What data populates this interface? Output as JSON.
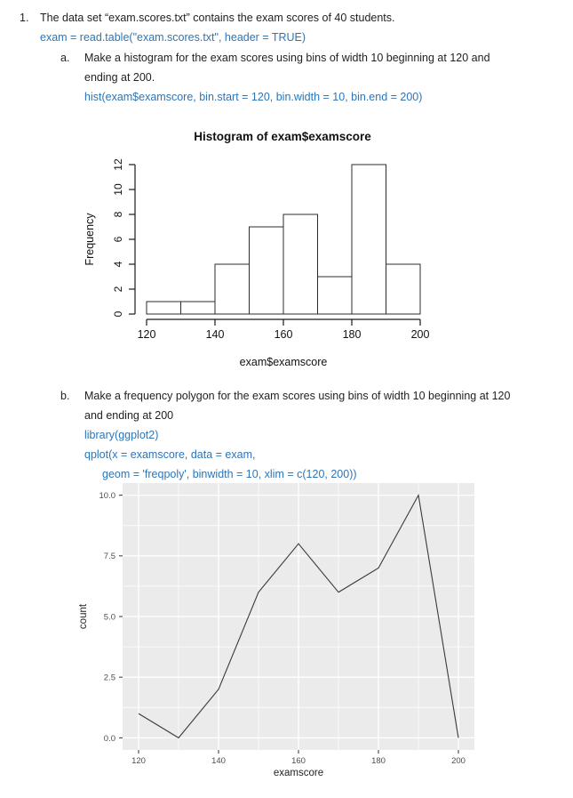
{
  "page": {
    "background": "#ffffff",
    "text_color": "#1f1f1f",
    "code_color": "#2E75B6"
  },
  "problem": {
    "number": "1.",
    "intro": "The data set “exam.scores.txt” contains the exam scores of 40 students.",
    "code_read": "exam = read.table(\"exam.scores.txt\", header = TRUE)",
    "items": [
      {
        "letter": "a.",
        "text_line1": "Make a histogram for the exam scores using bins of width 10 beginning at 120 and",
        "text_line2": "ending at 200.",
        "code1": "hist(exam$examscore, bin.start = 120, bin.width = 10, bin.end = 200)"
      },
      {
        "letter": "b.",
        "text_line1": "Make a frequency polygon for the exam scores using bins of width 10 beginning at 120",
        "text_line2": "and ending at 200",
        "code1": "library(ggplot2)",
        "code2": "qplot(x = examscore, data = exam,",
        "code3": "geom = 'freqpoly', binwidth = 10, xlim = c(120, 200))"
      }
    ]
  },
  "chart_data": [
    {
      "type": "bar",
      "style": "base-r-histogram",
      "title": "Histogram of exam$examscore",
      "xlabel": "exam$examscore",
      "ylabel": "Frequency",
      "bin_edges": [
        120,
        130,
        140,
        150,
        160,
        170,
        180,
        190,
        200
      ],
      "values": [
        1,
        1,
        4,
        7,
        8,
        3,
        12,
        4
      ],
      "x_ticks": [
        120,
        140,
        160,
        180,
        200
      ],
      "y_ticks": [
        0,
        2,
        4,
        6,
        8,
        10,
        12
      ],
      "xlim": [
        120,
        200
      ],
      "ylim": [
        0,
        12
      ],
      "grid": false,
      "bar_fill": "#ffffff",
      "bar_stroke": "#2b2b2b",
      "axis_color": "#1a1a1a"
    },
    {
      "type": "line",
      "style": "ggplot-freqpoly",
      "title": "",
      "xlabel": "examscore",
      "ylabel": "count",
      "x": [
        120,
        130,
        140,
        150,
        160,
        170,
        180,
        190,
        200
      ],
      "values": [
        1,
        0,
        2,
        6,
        8,
        6,
        7,
        10,
        0
      ],
      "x_ticks": [
        120,
        140,
        160,
        180,
        200
      ],
      "y_ticks": [
        0,
        2.5,
        5,
        7.5,
        10
      ],
      "y_tick_labels": [
        "0.0",
        "2.5",
        "5.0",
        "7.5",
        "10.0"
      ],
      "x_minor": [
        130,
        150,
        170,
        190
      ],
      "y_minor": [
        1.25,
        3.75,
        6.25,
        8.75
      ],
      "xlim": [
        116,
        204
      ],
      "ylim": [
        -0.5,
        10.5
      ],
      "grid": true,
      "legend": "none",
      "panel_bg": "#EBEBEB",
      "grid_color": "#ffffff",
      "line_color": "#3a3a3a",
      "tick_color": "#333333",
      "tick_label_color": "#4d4d4d",
      "axis_title_color": "#1f1f1f"
    }
  ]
}
